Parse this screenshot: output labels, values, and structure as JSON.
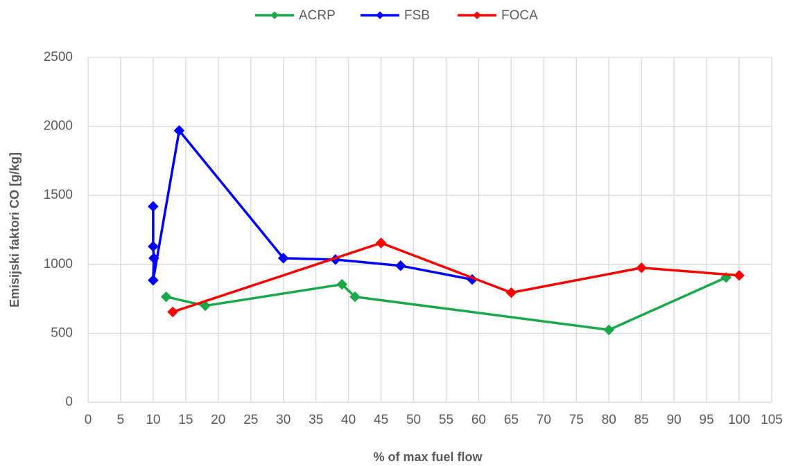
{
  "chart_data": {
    "type": "line",
    "x_label": "% of max fuel flow",
    "y_label": "Emisijski faktori CO [g/kg]",
    "xlim": [
      0,
      105
    ],
    "xticks": [
      0,
      5,
      10,
      15,
      20,
      25,
      30,
      35,
      40,
      45,
      50,
      55,
      60,
      65,
      70,
      75,
      80,
      85,
      90,
      95,
      100,
      105
    ],
    "ylim": [
      0,
      2500
    ],
    "yticks": [
      0,
      500,
      1000,
      1500,
      2000,
      2500
    ],
    "grid": true,
    "legend": "top",
    "series": [
      {
        "name": "ACRP",
        "color": "#1aa84a",
        "x": [
          12,
          18,
          39,
          41,
          80,
          98
        ],
        "values": [
          765,
          700,
          855,
          765,
          525,
          905
        ]
      },
      {
        "name": "FSB",
        "color": "#0000ff",
        "x": [
          10,
          10,
          10.1,
          10,
          14,
          30,
          38,
          48,
          59
        ],
        "values": [
          1420,
          1130,
          1045,
          885,
          1970,
          1045,
          1035,
          990,
          890
        ]
      },
      {
        "name": "FOCA",
        "color": "#ff0000",
        "x": [
          13,
          45,
          65,
          85,
          100
        ],
        "values": [
          655,
          1155,
          795,
          975,
          920
        ]
      }
    ]
  }
}
